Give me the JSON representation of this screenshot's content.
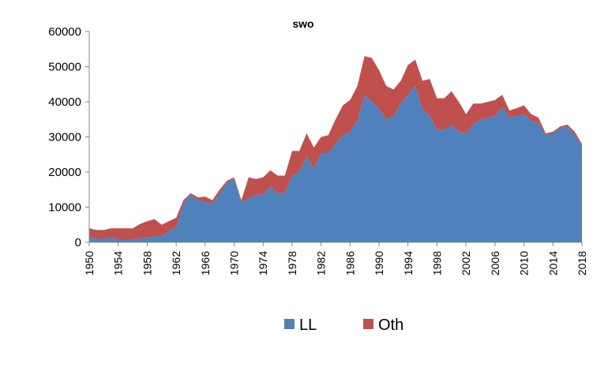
{
  "chart_data": {
    "type": "area",
    "stacked": true,
    "title": "swo",
    "xlabel": "",
    "ylabel": "",
    "xlim": [
      1950,
      2018
    ],
    "ylim": [
      0,
      60000
    ],
    "yticks": [
      0,
      10000,
      20000,
      30000,
      40000,
      50000,
      60000
    ],
    "yticklabels": [
      "0",
      "10000",
      "20000",
      "30000",
      "40000",
      "50000",
      "60000"
    ],
    "xticks": [
      1950,
      1954,
      1958,
      1962,
      1966,
      1970,
      1974,
      1978,
      1982,
      1986,
      1990,
      1994,
      1998,
      2002,
      2006,
      2010,
      2014,
      2018
    ],
    "xticklabels": [
      "1950",
      "1954",
      "1958",
      "1962",
      "1966",
      "1970",
      "1974",
      "1978",
      "1982",
      "1986",
      "1990",
      "1994",
      "1998",
      "2002",
      "2006",
      "2010",
      "2014",
      "2018"
    ],
    "grid": false,
    "legend_position": "bottom",
    "colors": {
      "LL": "#4f81bd",
      "Oth": "#c0504d"
    },
    "x": [
      1950,
      1951,
      1952,
      1953,
      1954,
      1955,
      1956,
      1957,
      1958,
      1959,
      1960,
      1961,
      1962,
      1963,
      1964,
      1965,
      1966,
      1967,
      1968,
      1969,
      1970,
      1971,
      1972,
      1973,
      1974,
      1975,
      1976,
      1977,
      1978,
      1979,
      1980,
      1981,
      1982,
      1983,
      1984,
      1985,
      1986,
      1987,
      1988,
      1989,
      1990,
      1991,
      1992,
      1993,
      1994,
      1995,
      1996,
      1997,
      1998,
      1999,
      2000,
      2001,
      2002,
      2003,
      2004,
      2005,
      2006,
      2007,
      2008,
      2009,
      2010,
      2011,
      2012,
      2013,
      2014,
      2015,
      2016,
      2017,
      2018
    ],
    "series": [
      {
        "name": "LL",
        "values": [
          1500,
          1000,
          1000,
          1500,
          800,
          800,
          800,
          1200,
          1200,
          1800,
          1800,
          3000,
          4500,
          11000,
          13500,
          12000,
          11500,
          11000,
          14000,
          17000,
          18000,
          11500,
          12500,
          13500,
          13500,
          16000,
          14000,
          14000,
          19000,
          20000,
          24500,
          21000,
          25500,
          25500,
          28000,
          30500,
          31500,
          34500,
          42000,
          40000,
          38000,
          35000,
          36000,
          39500,
          42000,
          44500,
          38000,
          36000,
          32000,
          32000,
          33500,
          31500,
          31000,
          33500,
          35000,
          35500,
          36000,
          38500,
          35500,
          36000,
          36500,
          34500,
          34000,
          30500,
          31000,
          32500,
          33000,
          30500,
          27500
        ]
      },
      {
        "name": "Oth",
        "values": [
          2500,
          2500,
          2500,
          2500,
          3200,
          3200,
          3200,
          4000,
          4800,
          4800,
          3200,
          3000,
          2500,
          1000,
          500,
          800,
          1500,
          1000,
          1000,
          500,
          500,
          500,
          6000,
          4500,
          5000,
          4500,
          5000,
          5000,
          7000,
          6000,
          6500,
          6000,
          4500,
          5000,
          7000,
          8500,
          9000,
          10000,
          11000,
          12500,
          11000,
          9500,
          7500,
          6500,
          8500,
          7500,
          8000,
          10500,
          9000,
          9000,
          9500,
          8500,
          5500,
          6000,
          4500,
          4500,
          4500,
          3500,
          2000,
          2200,
          2500,
          2000,
          1500,
          500,
          500,
          500,
          500,
          1000,
          500
        ]
      }
    ]
  }
}
